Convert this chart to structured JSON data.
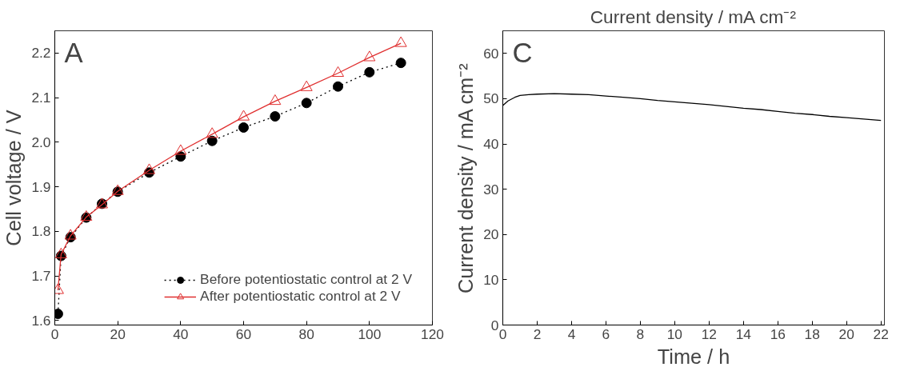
{
  "chart_data": [
    {
      "type": "line",
      "ylabel": "Cell voltage / V",
      "xlim": [
        0,
        120
      ],
      "ylim": [
        1.59,
        2.25
      ],
      "xticks": [
        0,
        20,
        40,
        60,
        80,
        100,
        120
      ],
      "yticks": [
        1.6,
        1.7,
        1.8,
        1.9,
        {
          "value": 2,
          "label": "2.0"
        },
        2.1,
        2.2
      ],
      "grid": false,
      "legend": "bottom right",
      "annotations": [
        "A"
      ],
      "x": [
        1,
        2,
        5,
        10,
        15,
        20,
        30,
        40,
        50,
        60,
        70,
        80,
        90,
        100,
        110
      ],
      "series": [
        {
          "name": "Before potentiostatic control at 2 V",
          "color": "#000000",
          "marker": "circle",
          "line_style": "dotted",
          "values": [
            1.615,
            1.745,
            1.787,
            1.831,
            1.862,
            1.889,
            1.932,
            1.968,
            2.003,
            2.033,
            2.058,
            2.088,
            2.125,
            2.157,
            2.178
          ]
        },
        {
          "name": "After potentiostatic control at 2 V",
          "color": "#e03030",
          "marker": "triangle",
          "line_style": "solid",
          "values": [
            1.668,
            1.748,
            1.79,
            1.832,
            1.86,
            1.89,
            1.937,
            1.98,
            2.018,
            2.057,
            2.092,
            2.123,
            2.155,
            2.19,
            2.222
          ]
        }
      ]
    },
    {
      "type": "line",
      "title": "Current density / mA cm⁻²",
      "xlabel": "Time / h",
      "ylabel": "Current density / mA cm⁻²",
      "xlim": [
        0,
        22.2
      ],
      "ylim": [
        0,
        65
      ],
      "xticks": [
        0,
        2,
        4,
        6,
        8,
        10,
        12,
        14,
        16,
        18,
        20,
        22
      ],
      "yticks": [
        0,
        10,
        20,
        30,
        40,
        50,
        60
      ],
      "grid": false,
      "legend": false,
      "marker": "none",
      "line_style": "solid",
      "annotations": [
        "C"
      ],
      "x": [
        0,
        0.3,
        0.7,
        1,
        1.5,
        2,
        3,
        4,
        5,
        6,
        7,
        8,
        9,
        10,
        11,
        12,
        13,
        14,
        15,
        16,
        17,
        18,
        19,
        20,
        21,
        22
      ],
      "series": [
        {
          "color": "#000000",
          "values": [
            48.5,
            49.5,
            50.3,
            50.7,
            50.9,
            51.0,
            51.1,
            51.0,
            50.9,
            50.6,
            50.3,
            50.0,
            49.6,
            49.3,
            49.0,
            48.7,
            48.3,
            47.9,
            47.6,
            47.2,
            46.8,
            46.5,
            46.1,
            45.8,
            45.5,
            45.2
          ]
        }
      ]
    }
  ]
}
